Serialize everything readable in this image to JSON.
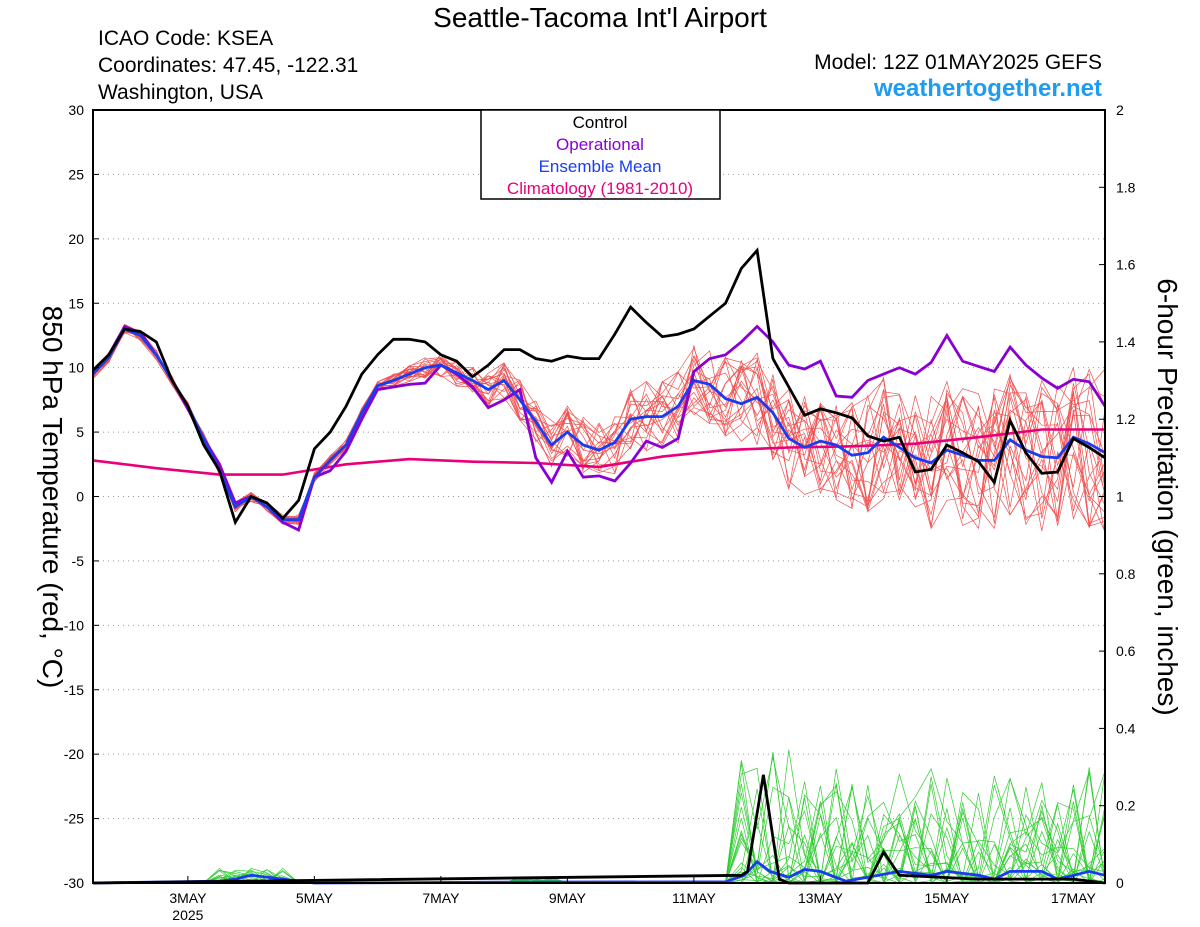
{
  "header": {
    "title": "Seattle-Tacoma Int'l Airport",
    "icao": "ICAO Code: KSEA",
    "coordinates": "Coordinates: 47.45, -122.31",
    "region": "Washington, USA",
    "model": "Model: 12Z 01MAY2025 GEFS",
    "website": "weathertogether.net"
  },
  "chart_data": {
    "type": "line",
    "x_axis": {
      "ticks": [
        {
          "day": 3,
          "label": "3MAY",
          "sublabel": "2025"
        },
        {
          "day": 5,
          "label": "5MAY"
        },
        {
          "day": 7,
          "label": "7MAY"
        },
        {
          "day": 9,
          "label": "9MAY"
        },
        {
          "day": 11,
          "label": "11MAY"
        },
        {
          "day": 13,
          "label": "13MAY"
        },
        {
          "day": 15,
          "label": "15MAY"
        },
        {
          "day": 17,
          "label": "17MAY"
        }
      ],
      "range_days": [
        1.5,
        17.5
      ]
    },
    "y_left": {
      "label": "850 hPa Temperature (red, °C)",
      "range": [
        -30,
        30
      ],
      "ticks": [
        "-30",
        "-25",
        "-20",
        "-15",
        "-10",
        "-5",
        "0",
        "5",
        "10",
        "15",
        "20",
        "25",
        "30"
      ]
    },
    "y_right": {
      "label": "6-hour Precipitation (green, inches)",
      "range": [
        0,
        2
      ],
      "ticks": [
        "0",
        "0.2",
        "0.4",
        "0.6",
        "0.8",
        "1",
        "1.2",
        "1.4",
        "1.6",
        "1.8",
        "2"
      ]
    },
    "grid": "horizontal dotted",
    "legend": {
      "placement": "top-center",
      "entries": [
        {
          "label": "Control",
          "color": "#000000"
        },
        {
          "label": "Operational",
          "color": "#8a00d4"
        },
        {
          "label": "Ensemble Mean",
          "color": "#1a3cf0"
        },
        {
          "label": "Climatology (1981-2010)",
          "color": "#e8007a"
        }
      ]
    },
    "colors": {
      "members_temp": "#f05050",
      "members_precip": "#30cc30"
    },
    "temperature": {
      "control": [
        [
          1.5,
          9.8
        ],
        [
          1.75,
          11
        ],
        [
          2,
          13
        ],
        [
          2.25,
          12.8
        ],
        [
          2.5,
          12
        ],
        [
          2.75,
          9
        ],
        [
          3,
          7
        ],
        [
          3.25,
          4
        ],
        [
          3.5,
          2
        ],
        [
          3.75,
          -2
        ],
        [
          4,
          0
        ],
        [
          4.25,
          -0.5
        ],
        [
          4.5,
          -1.7
        ],
        [
          4.75,
          -0.3
        ],
        [
          5,
          3.7
        ],
        [
          5.25,
          5
        ],
        [
          5.5,
          7
        ],
        [
          5.75,
          9.5
        ],
        [
          6,
          11
        ],
        [
          6.25,
          12.2
        ],
        [
          6.5,
          12.2
        ],
        [
          6.75,
          12
        ],
        [
          7,
          11
        ],
        [
          7.25,
          10.5
        ],
        [
          7.5,
          9.3
        ],
        [
          7.75,
          10.2
        ],
        [
          8,
          11.4
        ],
        [
          8.25,
          11.4
        ],
        [
          8.5,
          10.7
        ],
        [
          8.75,
          10.5
        ],
        [
          9,
          10.9
        ],
        [
          9.25,
          10.7
        ],
        [
          9.5,
          10.7
        ],
        [
          9.75,
          12.6
        ],
        [
          10,
          14.7
        ],
        [
          10.25,
          13.5
        ],
        [
          10.5,
          12.4
        ],
        [
          10.75,
          12.6
        ],
        [
          11,
          13
        ],
        [
          11.25,
          14
        ],
        [
          11.5,
          15
        ],
        [
          11.75,
          17.7
        ],
        [
          12,
          19.1
        ],
        [
          12.25,
          10.7
        ],
        [
          12.5,
          8.5
        ],
        [
          12.75,
          6.3
        ],
        [
          13,
          6.8
        ],
        [
          13.25,
          6.5
        ],
        [
          13.5,
          6.1
        ],
        [
          13.75,
          4.7
        ],
        [
          14,
          4.3
        ],
        [
          14.25,
          4.6
        ],
        [
          14.5,
          1.9
        ],
        [
          14.75,
          2.1
        ],
        [
          15,
          4
        ],
        [
          15.25,
          3.4
        ],
        [
          15.5,
          2.7
        ],
        [
          15.75,
          1.1
        ],
        [
          16,
          5.9
        ],
        [
          16.25,
          3.4
        ],
        [
          16.5,
          1.8
        ],
        [
          16.75,
          1.9
        ],
        [
          17,
          4.5
        ],
        [
          17.25,
          3.8
        ],
        [
          17.5,
          3
        ]
      ],
      "operational": [
        [
          1.5,
          9.6
        ],
        [
          1.75,
          11
        ],
        [
          2,
          13.2
        ],
        [
          2.25,
          12.7
        ],
        [
          2.5,
          11
        ],
        [
          2.75,
          9
        ],
        [
          3,
          6.8
        ],
        [
          3.25,
          4.5
        ],
        [
          3.5,
          2.5
        ],
        [
          3.75,
          -0.5
        ],
        [
          4,
          0
        ],
        [
          4.25,
          -0.8
        ],
        [
          4.5,
          -2
        ],
        [
          4.75,
          -2.6
        ],
        [
          5,
          1.5
        ],
        [
          5.25,
          2
        ],
        [
          5.5,
          3.5
        ],
        [
          5.75,
          6
        ],
        [
          6,
          8.3
        ],
        [
          6.25,
          8.5
        ],
        [
          6.5,
          8.7
        ],
        [
          6.75,
          8.8
        ],
        [
          7,
          10.2
        ],
        [
          7.25,
          9.5
        ],
        [
          7.5,
          8.5
        ],
        [
          7.75,
          6.9
        ],
        [
          8,
          7.5
        ],
        [
          8.25,
          8.3
        ],
        [
          8.5,
          3
        ],
        [
          8.75,
          1.1
        ],
        [
          9,
          3.5
        ],
        [
          9.25,
          1.5
        ],
        [
          9.5,
          1.6
        ],
        [
          9.75,
          1.2
        ],
        [
          10,
          2.6
        ],
        [
          10.25,
          4.3
        ],
        [
          10.5,
          3.8
        ],
        [
          10.75,
          4.5
        ],
        [
          11,
          9.7
        ],
        [
          11.25,
          10.7
        ],
        [
          11.5,
          11
        ],
        [
          11.75,
          12
        ],
        [
          12,
          13.2
        ],
        [
          12.25,
          12
        ],
        [
          12.5,
          10.2
        ],
        [
          12.75,
          9.9
        ],
        [
          13,
          10.5
        ],
        [
          13.25,
          7.8
        ],
        [
          13.5,
          7.7
        ],
        [
          13.75,
          9
        ],
        [
          14,
          9.5
        ],
        [
          14.25,
          10
        ],
        [
          14.5,
          9.5
        ],
        [
          14.75,
          10.4
        ],
        [
          15,
          12.5
        ],
        [
          15.25,
          10.5
        ],
        [
          15.5,
          10.1
        ],
        [
          15.75,
          9.7
        ],
        [
          16,
          11.6
        ],
        [
          16.25,
          10.2
        ],
        [
          16.5,
          9.2
        ],
        [
          16.75,
          8.4
        ],
        [
          17,
          9.1
        ],
        [
          17.25,
          8.9
        ],
        [
          17.5,
          7
        ]
      ],
      "ensemble_mean": [
        [
          1.5,
          9.5
        ],
        [
          1.75,
          10.8
        ],
        [
          2,
          13
        ],
        [
          2.25,
          12.5
        ],
        [
          2.5,
          11
        ],
        [
          2.75,
          9
        ],
        [
          3,
          7
        ],
        [
          3.25,
          4.5
        ],
        [
          3.5,
          2
        ],
        [
          3.75,
          -0.8
        ],
        [
          4,
          0
        ],
        [
          4.25,
          -0.8
        ],
        [
          4.5,
          -1.8
        ],
        [
          4.75,
          -1.8
        ],
        [
          5,
          1.5
        ],
        [
          5.25,
          2.8
        ],
        [
          5.5,
          4
        ],
        [
          5.75,
          6.5
        ],
        [
          6,
          8.6
        ],
        [
          6.25,
          9
        ],
        [
          6.5,
          9.5
        ],
        [
          6.75,
          10
        ],
        [
          7,
          10.2
        ],
        [
          7.25,
          9.6
        ],
        [
          7.5,
          9
        ],
        [
          7.75,
          8.3
        ],
        [
          8,
          9
        ],
        [
          8.25,
          7.5
        ],
        [
          8.5,
          5.8
        ],
        [
          8.75,
          4
        ],
        [
          9,
          5
        ],
        [
          9.25,
          4
        ],
        [
          9.5,
          3.6
        ],
        [
          9.75,
          4.2
        ],
        [
          10,
          6
        ],
        [
          10.25,
          6.2
        ],
        [
          10.5,
          6.2
        ],
        [
          10.75,
          7
        ],
        [
          11,
          9
        ],
        [
          11.25,
          8.7
        ],
        [
          11.5,
          7.6
        ],
        [
          11.75,
          7.2
        ],
        [
          12,
          7.7
        ],
        [
          12.25,
          6.5
        ],
        [
          12.5,
          4.5
        ],
        [
          12.75,
          3.8
        ],
        [
          13,
          4.3
        ],
        [
          13.25,
          4
        ],
        [
          13.5,
          3.2
        ],
        [
          13.75,
          3.4
        ],
        [
          14,
          4.6
        ],
        [
          14.25,
          3.8
        ],
        [
          14.5,
          3
        ],
        [
          14.75,
          2.6
        ],
        [
          15,
          3.6
        ],
        [
          15.25,
          3.2
        ],
        [
          15.5,
          2.8
        ],
        [
          15.75,
          2.8
        ],
        [
          16,
          4.4
        ],
        [
          16.25,
          3.6
        ],
        [
          16.5,
          3.1
        ],
        [
          16.75,
          3
        ],
        [
          17,
          4.6
        ],
        [
          17.25,
          4.1
        ],
        [
          17.5,
          3.4
        ]
      ],
      "climatology": [
        [
          1.5,
          2.8
        ],
        [
          2.5,
          2.2
        ],
        [
          3.5,
          1.7
        ],
        [
          4.5,
          1.7
        ],
        [
          5.5,
          2.5
        ],
        [
          6.5,
          2.9
        ],
        [
          7.5,
          2.7
        ],
        [
          8.5,
          2.6
        ],
        [
          9.5,
          2.3
        ],
        [
          10.5,
          3.1
        ],
        [
          11.5,
          3.6
        ],
        [
          12.5,
          3.8
        ],
        [
          13.5,
          3.9
        ],
        [
          14.5,
          4.1
        ],
        [
          15.5,
          4.6
        ],
        [
          16.5,
          5.2
        ],
        [
          17.5,
          5.2
        ]
      ]
    },
    "precipitation": {
      "control": [
        [
          1.5,
          0
        ],
        [
          11.75,
          0.02
        ],
        [
          11.85,
          0.03
        ],
        [
          12.1,
          0.28
        ],
        [
          12.35,
          0.01
        ],
        [
          12.5,
          0
        ],
        [
          13.75,
          0
        ],
        [
          14,
          0.08
        ],
        [
          14.25,
          0.02
        ],
        [
          15.5,
          0.01
        ],
        [
          17,
          0.01
        ],
        [
          17.5,
          0
        ]
      ],
      "ensemble_mean": [
        [
          1.5,
          0
        ],
        [
          3.5,
          0.005
        ],
        [
          3.75,
          0.01
        ],
        [
          4,
          0.02
        ],
        [
          4.5,
          0.01
        ],
        [
          5,
          0
        ],
        [
          8,
          0.002
        ],
        [
          11.5,
          0.003
        ],
        [
          11.8,
          0.02
        ],
        [
          12,
          0.055
        ],
        [
          12.2,
          0.03
        ],
        [
          12.5,
          0.015
        ],
        [
          12.75,
          0.035
        ],
        [
          13,
          0.03
        ],
        [
          13.4,
          0.005
        ],
        [
          13.75,
          0.015
        ],
        [
          14.25,
          0.03
        ],
        [
          14.75,
          0.02
        ],
        [
          15,
          0.03
        ],
        [
          15.5,
          0.02
        ],
        [
          15.75,
          0.01
        ],
        [
          16,
          0.03
        ],
        [
          16.5,
          0.03
        ],
        [
          16.75,
          0.01
        ],
        [
          17,
          0.02
        ],
        [
          17.25,
          0.03
        ],
        [
          17.5,
          0.02
        ]
      ]
    }
  }
}
